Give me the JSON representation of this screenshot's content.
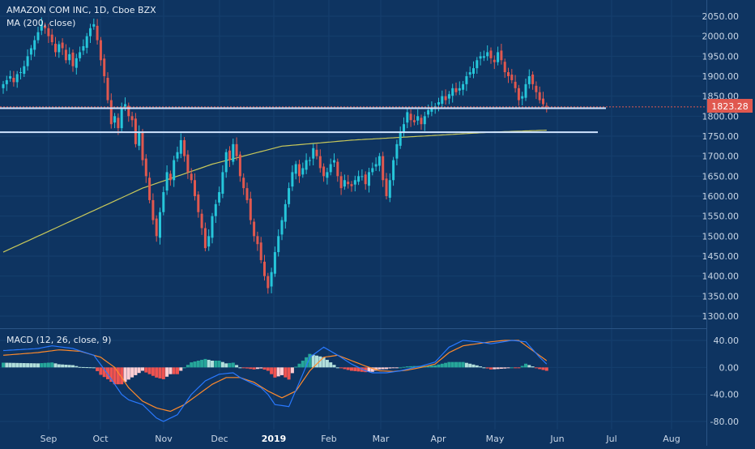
{
  "header": {
    "symbol_title": "AMAZON COM INC, 1D, Cboe BZX",
    "ma_label": "MA (200, close)",
    "macd_label": "MACD (12, 26, close, 9)"
  },
  "price_badge": "1823.28",
  "colors": {
    "background": "#0e3461",
    "up": "#26c6da",
    "down": "#e0584f",
    "ma": "#c8c85a",
    "macd_line": "#2979ff",
    "signal_line": "#ff8a2b",
    "hist_up_strong": "#26a69a",
    "hist_up_weak": "#b2dfdb",
    "hist_down_strong": "#ef5350",
    "hist_down_weak": "#ffcdd2",
    "support_line": "#cfe3ff",
    "price_line": "#e0584f"
  },
  "chart_data": [
    {
      "type": "candlestick",
      "title": "AMAZON COM INC, 1D, Cboe BZX",
      "x_axis_labels": [
        "Sep",
        "Oct",
        "Nov",
        "Dec",
        "2019",
        "Feb",
        "Mar",
        "Apr",
        "May",
        "Jun",
        "Jul",
        "Aug"
      ],
      "y_ticks": [
        "2050.00",
        "2000.00",
        "1950.00",
        "1900.00",
        "1850.00",
        "1800.00",
        "1750.00",
        "1700.00",
        "1650.00",
        "1600.00",
        "1550.00",
        "1500.00",
        "1450.00",
        "1400.00",
        "1350.00",
        "1300.00"
      ],
      "ylim": [
        1270,
        2075
      ],
      "last_price": 1823.28,
      "horizontal_levels": [
        1820,
        1760
      ],
      "closes": [
        1880,
        1890,
        1900,
        1885,
        1905,
        1910,
        1925,
        1950,
        1970,
        1990,
        2010,
        2030,
        2020,
        2000,
        1985,
        1960,
        1980,
        1970,
        1940,
        1955,
        1925,
        1945,
        1960,
        1975,
        2000,
        2020,
        2030,
        1990,
        1940,
        1900,
        1840,
        1780,
        1800,
        1770,
        1820,
        1830,
        1800,
        1790,
        1730,
        1760,
        1690,
        1650,
        1590,
        1540,
        1500,
        1560,
        1610,
        1660,
        1640,
        1690,
        1710,
        1740,
        1700,
        1660,
        1640,
        1600,
        1560,
        1520,
        1470,
        1500,
        1550,
        1580,
        1610,
        1660,
        1710,
        1690,
        1730,
        1700,
        1650,
        1620,
        1590,
        1540,
        1500,
        1480,
        1440,
        1400,
        1370,
        1410,
        1460,
        1500,
        1540,
        1580,
        1620,
        1660,
        1680,
        1650,
        1670,
        1690,
        1690,
        1720,
        1700,
        1670,
        1650,
        1660,
        1680,
        1690,
        1650,
        1620,
        1640,
        1630,
        1625,
        1640,
        1650,
        1650,
        1630,
        1660,
        1670,
        1680,
        1700,
        1640,
        1600,
        1640,
        1690,
        1730,
        1760,
        1780,
        1810,
        1790,
        1785,
        1800,
        1780,
        1800,
        1815,
        1820,
        1825,
        1835,
        1850,
        1840,
        1855,
        1870,
        1860,
        1870,
        1880,
        1900,
        1910,
        1920,
        1940,
        1950,
        1950,
        1960,
        1945,
        1935,
        1960,
        1940,
        1910,
        1900,
        1890,
        1870,
        1840,
        1850,
        1880,
        1900,
        1880,
        1860,
        1840,
        1830,
        1823.28
      ],
      "ma200_anchors": [
        [
          0,
          1460
        ],
        [
          20,
          1540
        ],
        [
          40,
          1620
        ],
        [
          60,
          1680
        ],
        [
          80,
          1725
        ],
        [
          100,
          1740
        ],
        [
          120,
          1750
        ],
        [
          140,
          1760
        ],
        [
          156,
          1765
        ]
      ],
      "series": [
        {
          "name": "MA (200, close)"
        }
      ]
    },
    {
      "type": "line",
      "title": "MACD (12, 26, close, 9)",
      "y_ticks": [
        "40.00",
        "0.00",
        "-40.00",
        "-80.00"
      ],
      "ylim": [
        -85,
        50
      ],
      "macd_anchors": [
        [
          0,
          25
        ],
        [
          10,
          28
        ],
        [
          14,
          32
        ],
        [
          20,
          28
        ],
        [
          26,
          18
        ],
        [
          30,
          -10
        ],
        [
          34,
          -40
        ],
        [
          36,
          -48
        ],
        [
          40,
          -55
        ],
        [
          44,
          -75
        ],
        [
          46,
          -80
        ],
        [
          50,
          -70
        ],
        [
          54,
          -40
        ],
        [
          58,
          -20
        ],
        [
          62,
          -10
        ],
        [
          66,
          -8
        ],
        [
          68,
          -15
        ],
        [
          70,
          -20
        ],
        [
          74,
          -30
        ],
        [
          76,
          -40
        ],
        [
          78,
          -55
        ],
        [
          82,
          -58
        ],
        [
          86,
          -10
        ],
        [
          88,
          15
        ],
        [
          92,
          30
        ],
        [
          96,
          18
        ],
        [
          100,
          5
        ],
        [
          104,
          -5
        ],
        [
          106,
          -8
        ],
        [
          110,
          -8
        ],
        [
          114,
          -5
        ],
        [
          118,
          0
        ],
        [
          120,
          2
        ],
        [
          124,
          8
        ],
        [
          128,
          30
        ],
        [
          132,
          40
        ],
        [
          136,
          38
        ],
        [
          140,
          35
        ],
        [
          146,
          40
        ],
        [
          150,
          38
        ],
        [
          154,
          15
        ],
        [
          156,
          5
        ]
      ],
      "signal_anchors": [
        [
          0,
          18
        ],
        [
          10,
          22
        ],
        [
          16,
          26
        ],
        [
          22,
          24
        ],
        [
          28,
          15
        ],
        [
          32,
          0
        ],
        [
          36,
          -30
        ],
        [
          40,
          -50
        ],
        [
          44,
          -60
        ],
        [
          48,
          -65
        ],
        [
          52,
          -55
        ],
        [
          56,
          -40
        ],
        [
          60,
          -25
        ],
        [
          64,
          -15
        ],
        [
          68,
          -15
        ],
        [
          72,
          -22
        ],
        [
          76,
          -35
        ],
        [
          80,
          -45
        ],
        [
          84,
          -35
        ],
        [
          88,
          -5
        ],
        [
          92,
          15
        ],
        [
          96,
          18
        ],
        [
          100,
          10
        ],
        [
          104,
          2
        ],
        [
          108,
          -5
        ],
        [
          112,
          -6
        ],
        [
          116,
          -4
        ],
        [
          120,
          0
        ],
        [
          124,
          5
        ],
        [
          128,
          22
        ],
        [
          132,
          32
        ],
        [
          136,
          35
        ],
        [
          140,
          38
        ],
        [
          144,
          40
        ],
        [
          148,
          40
        ],
        [
          152,
          25
        ],
        [
          156,
          10
        ]
      ]
    }
  ]
}
